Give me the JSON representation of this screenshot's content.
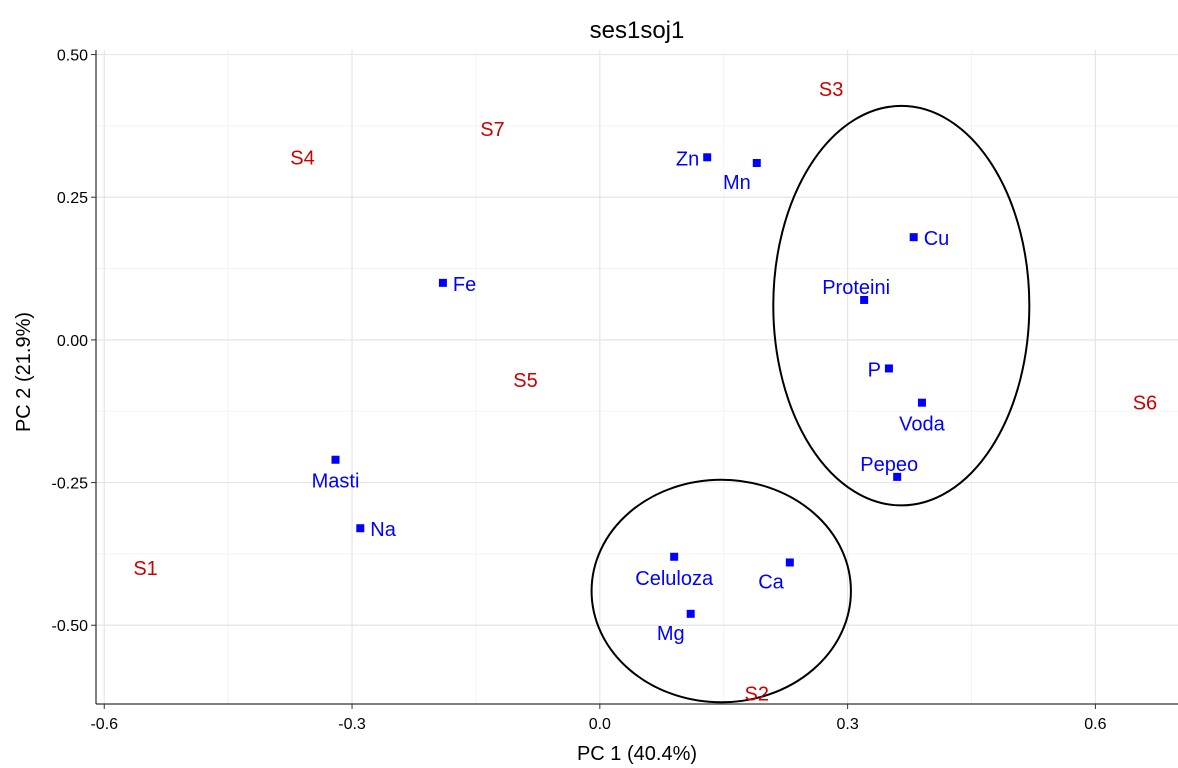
{
  "chart_data": {
    "type": "scatter",
    "title": "ses1soj1",
    "xlabel": "PC 1 (40.4%)",
    "ylabel": "PC 2 (21.9%)",
    "xlim": [
      -0.61,
      0.7
    ],
    "ylim": [
      -0.638,
      0.508
    ],
    "xticks": [
      -0.6,
      -0.3,
      0.0,
      0.3,
      0.6
    ],
    "xtick_labels": [
      "-0.6",
      "-0.3",
      "0.0",
      "0.3",
      "0.6"
    ],
    "yticks": [
      0.5,
      0.25,
      0.0,
      -0.25,
      -0.5
    ],
    "ytick_labels": [
      "0.50",
      "0.25",
      "0.00",
      "-0.25",
      "-0.50"
    ],
    "grid": true,
    "colors": {
      "samples": "#cc0000",
      "variables": "#0000ff",
      "grid_major": "#e5e5e5",
      "grid_minor": "#f3f3f3"
    },
    "samples": [
      {
        "label": "S1",
        "x": -0.55,
        "y": -0.4
      },
      {
        "label": "S2",
        "x": 0.19,
        "y": -0.62
      },
      {
        "label": "S3",
        "x": 0.28,
        "y": 0.44
      },
      {
        "label": "S4",
        "x": -0.36,
        "y": 0.32
      },
      {
        "label": "S5",
        "x": -0.09,
        "y": -0.07
      },
      {
        "label": "S6",
        "x": 0.66,
        "y": -0.11
      },
      {
        "label": "S7",
        "x": -0.13,
        "y": 0.37
      }
    ],
    "variables": [
      {
        "label": "Zn",
        "x": 0.13,
        "y": 0.32,
        "label_pos": "left"
      },
      {
        "label": "Mn",
        "x": 0.19,
        "y": 0.31,
        "label_pos": "bottom-left"
      },
      {
        "label": "Cu",
        "x": 0.38,
        "y": 0.18,
        "label_pos": "right"
      },
      {
        "label": "Fe",
        "x": -0.19,
        "y": 0.1,
        "label_pos": "right"
      },
      {
        "label": "Proteini",
        "x": 0.32,
        "y": 0.07,
        "label_pos": "top"
      },
      {
        "label": "P",
        "x": 0.35,
        "y": -0.05,
        "label_pos": "left"
      },
      {
        "label": "Voda",
        "x": 0.39,
        "y": -0.11,
        "label_pos": "below"
      },
      {
        "label": "Pepeo",
        "x": 0.36,
        "y": -0.24,
        "label_pos": "top"
      },
      {
        "label": "Masti",
        "x": -0.32,
        "y": -0.21,
        "label_pos": "below"
      },
      {
        "label": "Na",
        "x": -0.29,
        "y": -0.33,
        "label_pos": "right"
      },
      {
        "label": "Celuloza",
        "x": 0.09,
        "y": -0.38,
        "label_pos": "below"
      },
      {
        "label": "Ca",
        "x": 0.23,
        "y": -0.39,
        "label_pos": "bottom-left"
      },
      {
        "label": "Mg",
        "x": 0.11,
        "y": -0.48,
        "label_pos": "bottom-left"
      }
    ],
    "ellipses": [
      {
        "cx": 0.365,
        "cy": 0.06,
        "rx": 0.155,
        "ry": 0.35
      },
      {
        "cx": 0.147,
        "cy": -0.44,
        "rx": 0.157,
        "ry": 0.195
      }
    ]
  }
}
